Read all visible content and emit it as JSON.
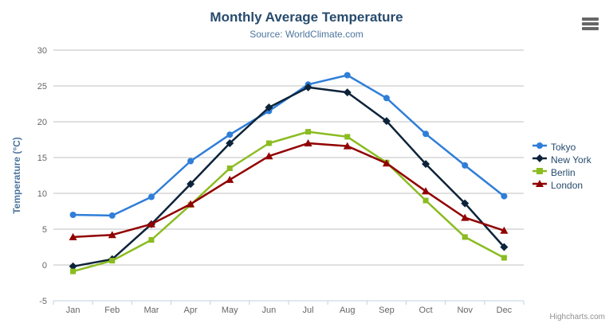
{
  "export_menu": {
    "icon": "hamburger-menu-icon",
    "tooltip": "Chart context menu"
  },
  "credits": {
    "label": "Highcharts.com"
  },
  "colors": {
    "background": "#ffffff",
    "title_text": "#274b6d",
    "subtitle_text": "#4d759e",
    "axis_title_text": "#4d759e",
    "tick_label_text": "#666666",
    "grid_line": "#c0c0c0",
    "axis_line": "#c0d0e0",
    "legend_text": "#274b6d",
    "credits_text": "#909090"
  },
  "chart_data": {
    "type": "line",
    "title": "Monthly Average Temperature",
    "subtitle": "Source: WorldClimate.com",
    "categories": [
      "Jan",
      "Feb",
      "Mar",
      "Apr",
      "May",
      "Jun",
      "Jul",
      "Aug",
      "Sep",
      "Oct",
      "Nov",
      "Dec"
    ],
    "xlabel": "",
    "ylabel": "Temperature (°C)",
    "ylim": [
      -5,
      30
    ],
    "y_tick_interval": 5,
    "y_tick_labels": [
      "-5",
      "0",
      "5",
      "10",
      "15",
      "20",
      "25",
      "30"
    ],
    "grid": true,
    "legend_position": "right",
    "series": [
      {
        "name": "Tokyo",
        "color": "#2f7ed8",
        "marker": "circle",
        "values": [
          7.0,
          6.9,
          9.5,
          14.5,
          18.2,
          21.5,
          25.2,
          26.5,
          23.3,
          18.3,
          13.9,
          9.6
        ]
      },
      {
        "name": "New York",
        "color": "#0d233a",
        "marker": "diamond",
        "values": [
          -0.2,
          0.8,
          5.7,
          11.3,
          17.0,
          22.0,
          24.8,
          24.1,
          20.1,
          14.1,
          8.6,
          2.5
        ]
      },
      {
        "name": "Berlin",
        "color": "#8bbc21",
        "marker": "square",
        "values": [
          -0.9,
          0.6,
          3.5,
          8.4,
          13.5,
          17.0,
          18.6,
          17.9,
          14.3,
          9.0,
          3.9,
          1.0
        ]
      },
      {
        "name": "London",
        "color": "#910000",
        "marker": "triangle",
        "values": [
          3.9,
          4.2,
          5.7,
          8.5,
          11.9,
          15.2,
          17.0,
          16.6,
          14.2,
          10.3,
          6.6,
          4.8
        ]
      }
    ]
  }
}
